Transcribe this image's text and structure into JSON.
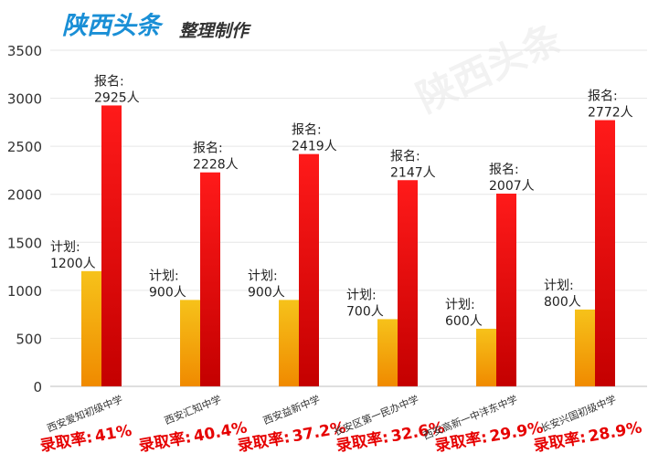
{
  "header": {
    "brand": "陕西头条",
    "subtitle": "整理制作",
    "brand_color": "#1a8fd6",
    "subtitle_color": "#333333"
  },
  "watermark": "陕西头条",
  "chart_data": {
    "type": "bar",
    "categories": [
      "西安爱知初级中学",
      "西安汇知中学",
      "西安益新中学",
      "长安区第一民办中学",
      "西安高新一中沣东中学",
      "长安兴国初级中学"
    ],
    "series": [
      {
        "name": "计划",
        "values": [
          1200,
          900,
          900,
          700,
          600,
          800
        ],
        "labels": [
          "1200人",
          "900人",
          "900人",
          "700人",
          "600人",
          "800人"
        ],
        "label_prefix": "计划:",
        "color_top": "#f6c21a",
        "color_bottom": "#f08a00"
      },
      {
        "name": "报名",
        "values": [
          2925,
          2228,
          2419,
          2147,
          2007,
          2772
        ],
        "labels": [
          "2925人",
          "2228人",
          "2419人",
          "2147人",
          "2007人",
          "2772人"
        ],
        "label_prefix": "报名:",
        "color_top": "#ff1a1a",
        "color_bottom": "#c40000"
      }
    ],
    "rates": [
      "41%",
      "40.4%",
      "37.2%",
      "32.6%",
      "29.9%",
      "28.9%"
    ],
    "rate_label": "录取率:",
    "rate_color": "#e60000",
    "yticks": [
      "0",
      "500",
      "1000",
      "1500",
      "2000",
      "2500",
      "3000",
      "3500"
    ],
    "ylim": [
      0,
      3500
    ],
    "grid": true,
    "legend": "none",
    "title": "",
    "xlabel": "",
    "ylabel": ""
  }
}
